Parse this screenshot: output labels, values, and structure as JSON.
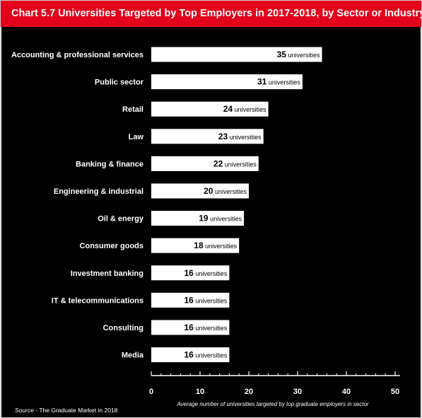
{
  "header": {
    "chart_number": "Chart 5.7",
    "title": "Universities Targeted by Top Employers in 2017-2018, by Sector or Industry"
  },
  "source": {
    "label": "Source",
    "separator": " - ",
    "text": "The Graduate Market in 2018"
  },
  "colors": {
    "header_bg": "#e2001a",
    "panel_bg": "#000000",
    "bar": "#ffffff",
    "text": "#ffffff"
  },
  "chart_data": {
    "type": "bar",
    "orientation": "horizontal",
    "categories": [
      "Accounting & professional services",
      "Public sector",
      "Retail",
      "Law",
      "Banking & finance",
      "Engineering & industrial",
      "Oil & energy",
      "Consumer goods",
      "Investment banking",
      "IT & telecommunications",
      "Consulting",
      "Media"
    ],
    "values": [
      35,
      31,
      24,
      23,
      22,
      20,
      19,
      18,
      16,
      16,
      16,
      16
    ],
    "value_suffix": "universities",
    "xlabel": "Average number of universities targeted by top graduate employers in sector",
    "xlim": [
      0,
      51
    ],
    "xticks": [
      0,
      10,
      20,
      30,
      40,
      50
    ],
    "grid": false,
    "legend": "none"
  }
}
